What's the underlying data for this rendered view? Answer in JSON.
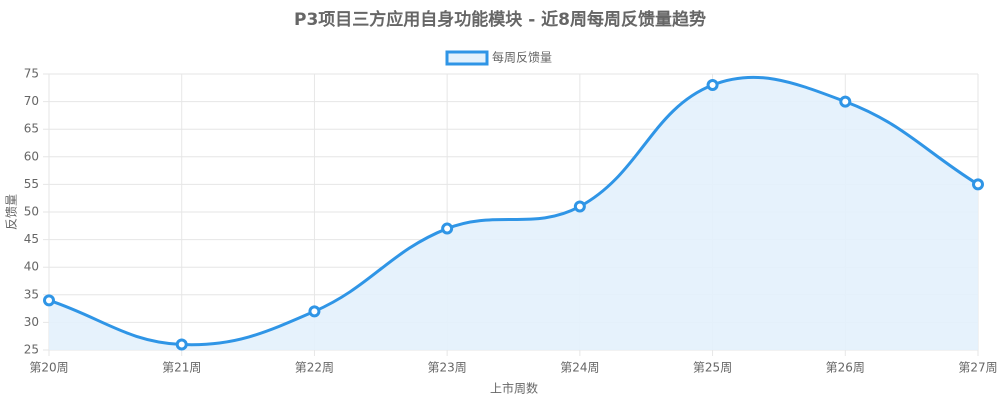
{
  "chart_data": {
    "type": "line",
    "title": "P3项目三方应用自身功能模块 - 近8周每周反馈量趋势",
    "x_label": "上市周数",
    "y_label": "反馈量",
    "categories": [
      "第20周",
      "第21周",
      "第22周",
      "第23周",
      "第24周",
      "第25周",
      "第26周",
      "第27周"
    ],
    "series": [
      {
        "name": "每周反馈量",
        "color": "#2f95e6",
        "values": [
          34,
          26,
          32,
          47,
          51,
          73,
          70,
          55
        ]
      }
    ],
    "ylim": [
      25,
      75
    ],
    "yticks": [
      25,
      30,
      35,
      40,
      45,
      50,
      55,
      60,
      65,
      70,
      75
    ],
    "grid": true,
    "legend": "top",
    "fill": true
  }
}
